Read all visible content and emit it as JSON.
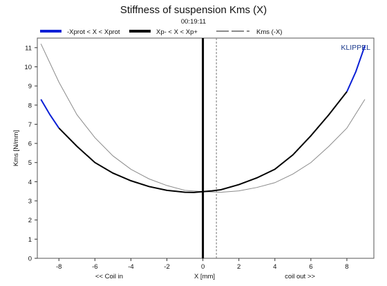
{
  "colors": {
    "background": "#ffffff",
    "frame": "#555555",
    "axis_zero": "#000000",
    "prot_range": "#0a1fd6",
    "xp_range": "#000000",
    "negative_x": "#8a8a8a",
    "brand": "#1c3a8c"
  },
  "chart_data": {
    "type": "line",
    "title": "Stiffness of suspension Kms (X)",
    "subtitle": "00:19:11",
    "brand": "KLIPPEL",
    "xlabel": "X [mm]",
    "ylabel": "Kms [N/mm]",
    "x_left_note": "<< Coil in",
    "x_right_note": "coil out >>",
    "xlim": [
      -9.2,
      9.5
    ],
    "ylim": [
      0,
      11.5
    ],
    "x_ticks": [
      "-8",
      "-6",
      "-4",
      "-2",
      "0",
      "2",
      "4",
      "6",
      "8"
    ],
    "y_ticks": [
      "0",
      "1",
      "2",
      "3",
      "4",
      "5",
      "6",
      "7",
      "8",
      "9",
      "10",
      "11"
    ],
    "grid": false,
    "legend_position": "top",
    "legend": [
      "-Xprot < X < Xprot",
      "Xp- < X < Xp+",
      "Kms (-X)"
    ],
    "marker_line_x": 0.75,
    "series": [
      {
        "name": "-Xprot < X < Xprot",
        "x": [
          -9.0,
          -8.5,
          -8.0,
          8.0,
          8.5,
          9.0
        ],
        "y": [
          8.3,
          7.5,
          6.8,
          8.7,
          9.75,
          11.1
        ]
      },
      {
        "name": "Xp- < X < Xp+",
        "x": [
          -8.0,
          -7.0,
          -6.0,
          -5.0,
          -4.0,
          -3.0,
          -2.0,
          -1.0,
          -0.5,
          0.0,
          0.5,
          1.0,
          2.0,
          3.0,
          4.0,
          5.0,
          6.0,
          7.0,
          8.0
        ],
        "y": [
          6.8,
          5.85,
          5.0,
          4.45,
          4.05,
          3.75,
          3.55,
          3.45,
          3.44,
          3.48,
          3.52,
          3.58,
          3.85,
          4.2,
          4.65,
          5.4,
          6.4,
          7.5,
          8.7
        ]
      },
      {
        "name": "Kms (-X)",
        "x": [
          -9.0,
          -8.0,
          -7.0,
          -6.0,
          -5.0,
          -4.0,
          -3.0,
          -2.0,
          -1.0,
          0.0,
          1.0,
          2.0,
          3.0,
          4.0,
          5.0,
          6.0,
          7.0,
          8.0,
          9.0
        ],
        "y": [
          11.2,
          9.2,
          7.5,
          6.3,
          5.35,
          4.65,
          4.15,
          3.8,
          3.55,
          3.48,
          3.45,
          3.52,
          3.7,
          3.95,
          4.4,
          5.0,
          5.85,
          6.8,
          8.3
        ]
      }
    ]
  }
}
